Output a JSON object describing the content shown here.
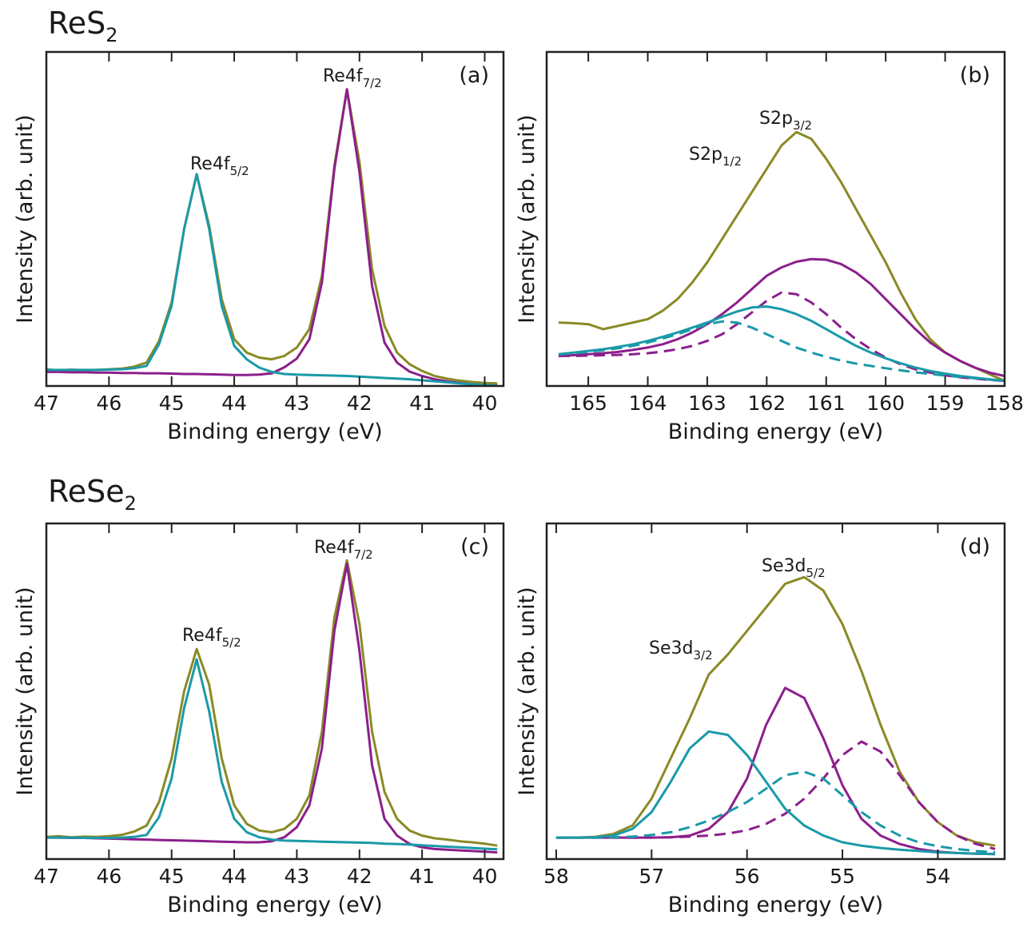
{
  "sections": [
    {
      "text": "ReS",
      "sub": "2"
    },
    {
      "text": "ReSe",
      "sub": "2"
    }
  ],
  "chart_data": [
    {
      "type": "line",
      "panel_label": "(a)",
      "x_label": "Binding energy (eV)",
      "y_label": "Intensity (arb. unit)",
      "xlim": [
        47,
        39.7
      ],
      "xticks": [
        47,
        46,
        45,
        44,
        43,
        42,
        41,
        40
      ],
      "ylim": [
        0,
        100
      ],
      "annotations": [
        {
          "text": "Re4f",
          "sub": "5/2"
        },
        {
          "text": "Re4f",
          "sub": "7/2"
        }
      ],
      "x": [
        47,
        46.8,
        46.6,
        46.4,
        46.2,
        46,
        45.8,
        45.6,
        45.4,
        45.2,
        45,
        44.8,
        44.6,
        44.4,
        44.2,
        44,
        43.8,
        43.6,
        43.4,
        43.2,
        43,
        42.8,
        42.6,
        42.4,
        42.2,
        42,
        41.8,
        41.6,
        41.4,
        41.2,
        41,
        40.8,
        40.6,
        40.4,
        40.2,
        40,
        39.8
      ],
      "series": [
        {
          "color": "#8a8a26",
          "values": [
            5.0,
            4.6,
            4.9,
            4.7,
            4.8,
            5.0,
            5.2,
            5.8,
            7.0,
            13.5,
            25,
            47,
            63.4,
            48,
            26,
            14,
            10,
            8.5,
            8,
            9,
            11.5,
            17,
            33,
            66,
            88.8,
            67,
            35,
            18,
            10,
            6.5,
            4.5,
            3.0,
            2.2,
            1.6,
            1.2,
            0.9,
            0.8
          ]
        },
        {
          "color": "#8c1f8c",
          "values": [
            4.2,
            4.2,
            4.1,
            4.1,
            4.0,
            4.0,
            3.9,
            3.9,
            3.8,
            3.8,
            3.7,
            3.6,
            3.6,
            3.5,
            3.4,
            3.3,
            3.3,
            3.4,
            3.8,
            5.6,
            8.2,
            14,
            31,
            65,
            88.8,
            64,
            30,
            13,
            7,
            4.3,
            3,
            2,
            1.4,
            0.9,
            0.5,
            0.3,
            0.1
          ]
        },
        {
          "color": "#1a9aa8",
          "values": [
            4.8,
            4.8,
            4.8,
            4.8,
            4.8,
            4.9,
            5.0,
            5.3,
            6.0,
            12.5,
            24,
            47,
            63.4,
            47,
            24,
            12,
            8,
            5.5,
            4.2,
            3.6,
            3.4,
            3.3,
            3.2,
            3.1,
            3.0,
            2.8,
            2.6,
            2.4,
            2.2,
            2.0,
            1.7,
            1.4,
            1.1,
            0.8,
            0.5,
            0.3,
            0.1
          ]
        }
      ]
    },
    {
      "type": "line",
      "panel_label": "(b)",
      "x_label": "Binding energy (eV)",
      "y_label": "Intensity (arb. unit)",
      "xlim": [
        165.7,
        158
      ],
      "xticks": [
        165,
        164,
        163,
        162,
        161,
        160,
        159,
        158
      ],
      "ylim": [
        0,
        100
      ],
      "annotations": [
        {
          "text": "S2p",
          "sub": "1/2"
        },
        {
          "text": "S2p",
          "sub": "3/2"
        }
      ],
      "x": [
        165.5,
        165.25,
        165,
        164.75,
        164.5,
        164.25,
        164,
        163.75,
        163.5,
        163.25,
        163,
        162.75,
        162.5,
        162.25,
        162,
        161.75,
        161.5,
        161.25,
        161,
        160.75,
        160.5,
        160.25,
        160,
        159.75,
        159.5,
        159.25,
        159,
        158.75,
        158.5,
        158.25,
        158
      ],
      "series": [
        {
          "color": "#8a8a26",
          "values": [
            19,
            18.8,
            18.5,
            17,
            18,
            19,
            20,
            22.5,
            26,
            31,
            37,
            44,
            51,
            58,
            65,
            72,
            76,
            74,
            68,
            61,
            53,
            45,
            37,
            28,
            20,
            14,
            10,
            7.5,
            5.5,
            3.5,
            1.5
          ]
        },
        {
          "color": "#8c1f8c",
          "values": [
            9,
            9.2,
            9.5,
            9.8,
            10.2,
            10.8,
            11.5,
            12.5,
            14,
            16,
            18.5,
            21.5,
            25,
            29,
            33,
            35.5,
            37.2,
            38,
            37.8,
            36.5,
            34,
            30.5,
            26,
            21.5,
            17,
            13,
            10,
            7.5,
            5.5,
            4,
            3
          ]
        },
        {
          "color": "#8c1f8c",
          "dashed": true,
          "values": [
            9,
            9,
            9.1,
            9.2,
            9.3,
            9.5,
            9.8,
            10.3,
            11,
            12,
            13.5,
            15.5,
            18.5,
            22,
            25.5,
            28,
            27.5,
            25,
            21.5,
            17.5,
            14,
            11,
            8.5,
            6.5,
            5,
            4,
            3.2,
            2.6,
            2.2,
            1.8,
            1.5
          ]
        },
        {
          "color": "#1a9aa8",
          "values": [
            9.5,
            10,
            10.5,
            11,
            11.7,
            12.5,
            13.5,
            14.7,
            16,
            17.5,
            19,
            20.7,
            22.3,
            23.5,
            23.8,
            23,
            21.5,
            19.5,
            17,
            14.5,
            12,
            10,
            8.3,
            6.8,
            5.5,
            4.5,
            3.7,
            3,
            2.5,
            2,
            1.5
          ]
        },
        {
          "color": "#1a9aa8",
          "dashed": true,
          "values": [
            9.5,
            9.8,
            10.2,
            10.7,
            11.3,
            12,
            13,
            14.2,
            15.5,
            17,
            18.5,
            19.3,
            19,
            17.5,
            15.5,
            13.5,
            11.5,
            10,
            8.7,
            7.6,
            6.7,
            6,
            5.3,
            4.7,
            4.1,
            3.6,
            3.1,
            2.7,
            2.3,
            1.9,
            1.5
          ]
        }
      ]
    },
    {
      "type": "line",
      "panel_label": "(c)",
      "x_label": "Binding energy (eV)",
      "y_label": "Intensity (arb. unit)",
      "xlim": [
        47,
        39.7
      ],
      "xticks": [
        47,
        46,
        45,
        44,
        43,
        42,
        41,
        40
      ],
      "ylim": [
        0,
        100
      ],
      "annotations": [
        {
          "text": "Re4f",
          "sub": "5/2"
        },
        {
          "text": "Re4f",
          "sub": "7/2"
        }
      ],
      "x": [
        47,
        46.8,
        46.6,
        46.4,
        46.2,
        46,
        45.8,
        45.6,
        45.4,
        45.2,
        45,
        44.8,
        44.6,
        44.4,
        44.2,
        44,
        43.8,
        43.6,
        43.4,
        43.2,
        43,
        42.8,
        42.6,
        42.4,
        42.2,
        42,
        41.8,
        41.6,
        41.4,
        41.2,
        41,
        40.8,
        40.6,
        40.4,
        40.2,
        40,
        39.8
      ],
      "series": [
        {
          "color": "#8a8a26",
          "values": [
            6.6,
            6.8,
            6.5,
            6.7,
            6.6,
            6.8,
            7.2,
            8.2,
            10,
            17,
            30,
            50,
            62.6,
            52,
            30,
            16,
            10.5,
            8.5,
            8,
            9,
            12,
            19,
            38,
            72,
            89,
            70,
            38,
            20,
            12,
            8.5,
            7,
            6.2,
            5.8,
            5.3,
            5.0,
            4.6,
            4.0
          ]
        },
        {
          "color": "#8c1f8c",
          "values": [
            6.4,
            6.4,
            6.3,
            6.3,
            6.2,
            6.1,
            6.0,
            5.9,
            5.8,
            5.7,
            5.6,
            5.5,
            5.4,
            5.3,
            5.2,
            5.1,
            5.0,
            5.0,
            5.3,
            6.5,
            9.5,
            16,
            33,
            68,
            88,
            62,
            28,
            12,
            7,
            4.5,
            3.5,
            3.0,
            2.8,
            2.6,
            2.4,
            2.2,
            2.0
          ]
        },
        {
          "color": "#1a9aa8",
          "values": [
            6.4,
            6.4,
            6.4,
            6.3,
            6.3,
            6.3,
            6.4,
            6.6,
            7.2,
            12.5,
            24,
            45,
            59.5,
            44,
            23,
            12,
            8,
            6.5,
            5.8,
            5.5,
            5.4,
            5.3,
            5.2,
            5.1,
            5.0,
            4.9,
            4.8,
            4.6,
            4.5,
            4.3,
            4.1,
            3.9,
            3.7,
            3.5,
            3.3,
            3.1,
            2.9
          ]
        }
      ]
    },
    {
      "type": "line",
      "panel_label": "(d)",
      "x_label": "Binding energy (eV)",
      "y_label": "Intensity (arb. unit)",
      "xlim": [
        58.1,
        53.3
      ],
      "xticks": [
        58,
        57,
        56,
        55,
        54
      ],
      "ylim": [
        0,
        100
      ],
      "annotations": [
        {
          "text": "Se3d",
          "sub": "5/2"
        },
        {
          "text": "Se3d",
          "sub": "3/2"
        }
      ],
      "x": [
        58,
        57.8,
        57.6,
        57.4,
        57.2,
        57,
        56.8,
        56.6,
        56.4,
        56.2,
        56,
        55.8,
        55.6,
        55.4,
        55.2,
        55,
        54.8,
        54.6,
        54.4,
        54.2,
        54,
        53.8,
        53.6,
        53.4
      ],
      "series": [
        {
          "color": "#8a8a26",
          "values": [
            6.4,
            6.4,
            6.6,
            7.5,
            10,
            18,
            30,
            42,
            55,
            61,
            68,
            75,
            82,
            84,
            80,
            70,
            56,
            40,
            26,
            17,
            11,
            7,
            5,
            4
          ]
        },
        {
          "color": "#8c1f8c",
          "values": [
            6.4,
            6.4,
            6.4,
            6.4,
            6.4,
            6.4,
            6.5,
            7,
            9,
            14,
            24,
            40,
            51,
            48,
            36,
            22,
            12,
            7,
            4.5,
            3,
            2.2,
            1.8,
            1.6,
            1.5
          ]
        },
        {
          "color": "#8c1f8c",
          "dashed": true,
          "values": [
            6.4,
            6.4,
            6.4,
            6.4,
            6.4,
            6.4,
            6.5,
            6.7,
            7,
            7.6,
            8.6,
            10.5,
            13.5,
            18,
            24,
            31,
            35,
            32,
            25,
            17,
            11,
            7,
            4.5,
            3
          ]
        },
        {
          "color": "#1a9aa8",
          "values": [
            6.4,
            6.4,
            6.5,
            7,
            9,
            14,
            23,
            33,
            38,
            37,
            31,
            23,
            15,
            10,
            7,
            5,
            4,
            3.3,
            2.8,
            2.4,
            2.0,
            1.8,
            1.6,
            1.5
          ]
        },
        {
          "color": "#1a9aa8",
          "dashed": true,
          "values": [
            6.4,
            6.4,
            6.4,
            6.5,
            6.7,
            7.2,
            8,
            9.5,
            11.5,
            14,
            17,
            21,
            25,
            26,
            24,
            19,
            14,
            10,
            7,
            5,
            3.8,
            3,
            2.4,
            2.0
          ]
        }
      ]
    }
  ]
}
